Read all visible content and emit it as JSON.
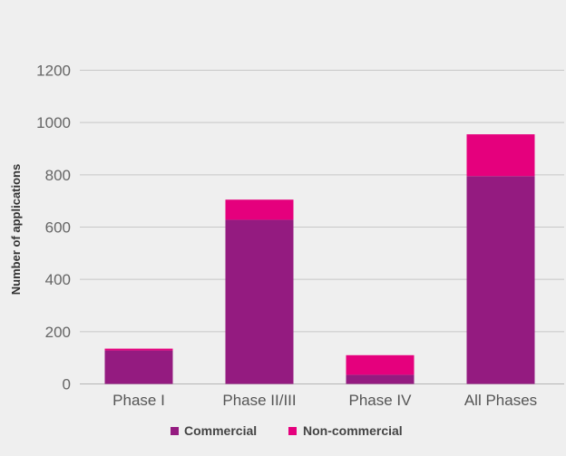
{
  "chart_data": {
    "type": "bar",
    "stacked": true,
    "categories": [
      "Phase I",
      "Phase II/III",
      "Phase IV",
      "All Phases"
    ],
    "series": [
      {
        "name": "Commercial",
        "values": [
          128,
          628,
          35,
          795
        ],
        "color": "#941b80"
      },
      {
        "name": "Non-commercial",
        "values": [
          7,
          77,
          75,
          160
        ],
        "color": "#e5007d"
      }
    ],
    "ylabel": "Number of applications",
    "ylim": [
      0,
      1200
    ],
    "yticks": [
      0,
      200,
      400,
      600,
      800,
      1000,
      1200
    ],
    "grid": true,
    "legend_position": "bottom-center"
  }
}
